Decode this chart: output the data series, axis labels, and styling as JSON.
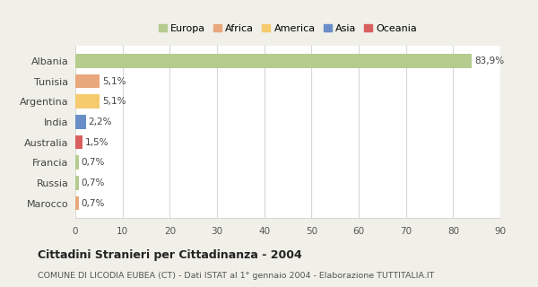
{
  "categories": [
    "Albania",
    "Tunisia",
    "Argentina",
    "India",
    "Australia",
    "Francia",
    "Russia",
    "Marocco"
  ],
  "values": [
    83.9,
    5.1,
    5.1,
    2.2,
    1.5,
    0.7,
    0.7,
    0.7
  ],
  "labels": [
    "83,9%",
    "5,1%",
    "5,1%",
    "2,2%",
    "1,5%",
    "0,7%",
    "0,7%",
    "0,7%"
  ],
  "colors": [
    "#b5cc8e",
    "#e8a87c",
    "#f5cb6e",
    "#6a8fc8",
    "#d95f5f",
    "#b5cc8e",
    "#b5cc8e",
    "#e8a87c"
  ],
  "legend": [
    {
      "label": "Europa",
      "color": "#b5cc8e"
    },
    {
      "label": "Africa",
      "color": "#e8a87c"
    },
    {
      "label": "America",
      "color": "#f5cb6e"
    },
    {
      "label": "Asia",
      "color": "#6a8fc8"
    },
    {
      "label": "Oceania",
      "color": "#d95f5f"
    }
  ],
  "xlim": [
    0,
    90
  ],
  "xticks": [
    0,
    10,
    20,
    30,
    40,
    50,
    60,
    70,
    80,
    90
  ],
  "title": "Cittadini Stranieri per Cittadinanza - 2004",
  "subtitle": "COMUNE DI LICODIA EUBEA (CT) - Dati ISTAT al 1° gennaio 2004 - Elaborazione TUTTITALIA.IT",
  "fig_background": "#f0f0e8",
  "plot_background": "#ffffff",
  "grid_color": "#d8d8d8"
}
